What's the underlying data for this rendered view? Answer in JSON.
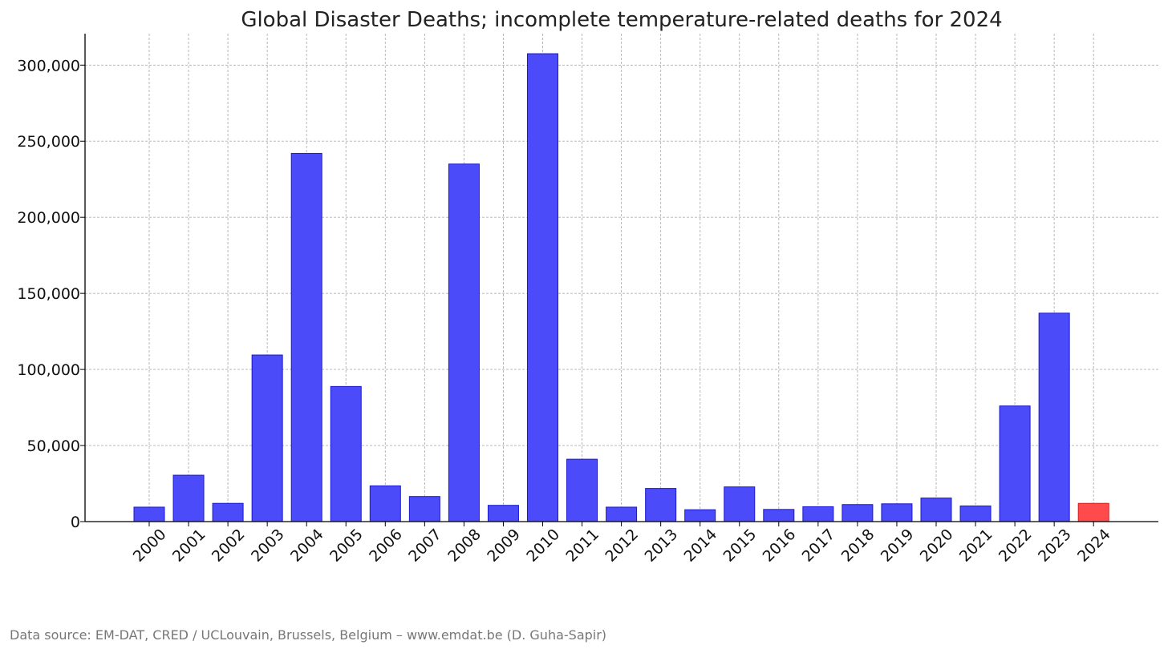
{
  "chart_data": {
    "type": "bar",
    "title": "Global Disaster Deaths; incomplete temperature-related deaths for 2024",
    "xlabel": "",
    "ylabel": "",
    "categories": [
      "2000",
      "2001",
      "2002",
      "2003",
      "2004",
      "2005",
      "2006",
      "2007",
      "2008",
      "2009",
      "2010",
      "2011",
      "2012",
      "2013",
      "2014",
      "2015",
      "2016",
      "2017",
      "2018",
      "2019",
      "2020",
      "2021",
      "2022",
      "2023",
      "2024"
    ],
    "values": [
      9500,
      30500,
      12000,
      109500,
      242000,
      88800,
      23500,
      16500,
      235000,
      10700,
      307500,
      41000,
      9500,
      21800,
      7800,
      22800,
      8000,
      9800,
      11200,
      11700,
      15500,
      10300,
      76000,
      137000,
      12000
    ],
    "bar_colors": [
      "#4b4bfa",
      "#4b4bfa",
      "#4b4bfa",
      "#4b4bfa",
      "#4b4bfa",
      "#4b4bfa",
      "#4b4bfa",
      "#4b4bfa",
      "#4b4bfa",
      "#4b4bfa",
      "#4b4bfa",
      "#4b4bfa",
      "#4b4bfa",
      "#4b4bfa",
      "#4b4bfa",
      "#4b4bfa",
      "#4b4bfa",
      "#4b4bfa",
      "#4b4bfa",
      "#4b4bfa",
      "#4b4bfa",
      "#4b4bfa",
      "#4b4bfa",
      "#4b4bfa",
      "#ff4b4b"
    ],
    "ylim": [
      0,
      322000
    ],
    "yticks": [
      0,
      50000,
      100000,
      150000,
      200000,
      250000,
      300000
    ],
    "ytick_labels": [
      "0",
      "50,000",
      "100,000",
      "150,000",
      "200,000",
      "250,000",
      "300,000"
    ],
    "grid": true,
    "grid_style": "dashed",
    "xtick_rotation": 45,
    "legend": "none"
  },
  "source_note": "Data source: EM-DAT, CRED / UCLouvain, Brussels, Belgium – www.emdat.be (D. Guha-Sapir)"
}
